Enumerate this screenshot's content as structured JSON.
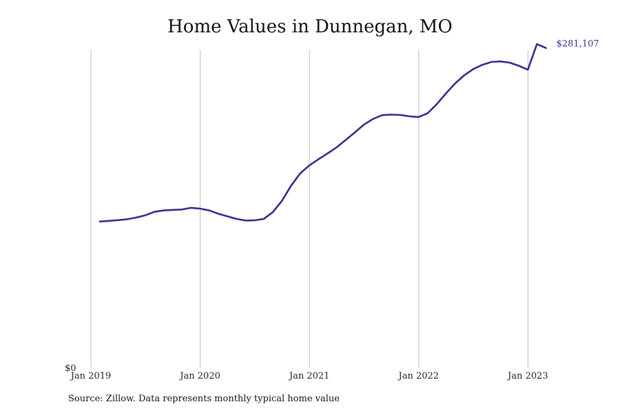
{
  "chart_data": {
    "type": "line",
    "title": "Home Values in Dunnegan, MO",
    "xlabel": "",
    "ylabel": "",
    "x_tick_labels": [
      "Jan 2019",
      "Jan 2020",
      "Jan 2021",
      "Jan 2022",
      "Jan 2023"
    ],
    "y_tick_labels": [
      "$0"
    ],
    "ylim": [
      0,
      300000
    ],
    "grid": {
      "vertical": true,
      "horizontal": false
    },
    "line_color": "#2e2e8f",
    "end_label": "$281,107",
    "series": [
      {
        "x": [
          "2019-01",
          "2019-02",
          "2019-03",
          "2019-04",
          "2019-05",
          "2019-06",
          "2019-07",
          "2019-08",
          "2019-09",
          "2019-10",
          "2019-11",
          "2019-12",
          "2020-01",
          "2020-02",
          "2020-03",
          "2020-04",
          "2020-05",
          "2020-06",
          "2020-07",
          "2020-08",
          "2020-09",
          "2020-10",
          "2020-11",
          "2020-12",
          "2021-01",
          "2021-02",
          "2021-03",
          "2021-04",
          "2021-05",
          "2021-06",
          "2021-07",
          "2021-08",
          "2021-09",
          "2021-10",
          "2021-11",
          "2021-12",
          "2022-01",
          "2022-02",
          "2022-03",
          "2022-04",
          "2022-05",
          "2022-06",
          "2022-07",
          "2022-08",
          "2022-09",
          "2022-10",
          "2022-11",
          "2022-12",
          "2023-01",
          "2023-02"
        ],
        "values": [
          128500,
          129000,
          129700,
          130500,
          132000,
          134000,
          137000,
          138200,
          138700,
          139000,
          140500,
          139800,
          138200,
          135300,
          133000,
          130800,
          129300,
          129500,
          130700,
          136700,
          146700,
          160000,
          170800,
          177800,
          183200,
          188300,
          193700,
          200300,
          206800,
          213700,
          218700,
          222000,
          222500,
          222200,
          221000,
          220300,
          223700,
          231700,
          241000,
          249800,
          257000,
          262500,
          266300,
          268800,
          269300,
          268200,
          265500,
          262000,
          284500,
          281107
        ]
      }
    ]
  },
  "source_note": "Source: Zillow. Data represents monthly typical home value"
}
